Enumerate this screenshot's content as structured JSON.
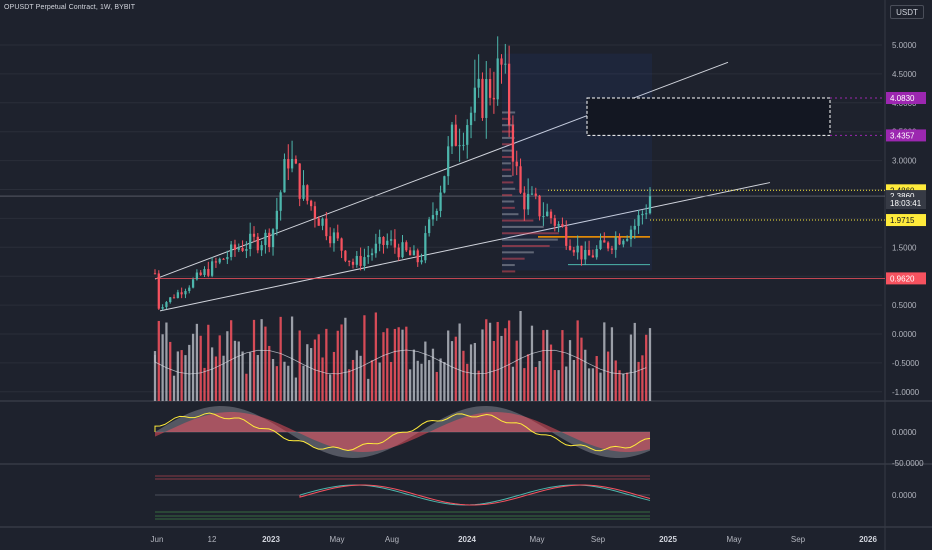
{
  "header": {
    "title": "OPUSDT Perpetual Contract, 1W, BYBIT",
    "currency_label": "USDT"
  },
  "price_axis": {
    "ticks": [
      "5.0000",
      "4.5000",
      "4.0000",
      "3.5000",
      "3.0000",
      "2.5000",
      "2.0000",
      "1.5000",
      "1.0000",
      "0.5000",
      "0.0000",
      "-0.5000",
      "-1.0000"
    ],
    "labels": [
      {
        "text": "4.0830",
        "color": "#9c27b0",
        "value": 4.083
      },
      {
        "text": "3.4357",
        "color": "#9c27b0",
        "value": 3.4357
      },
      {
        "text": "2.4860",
        "color": "#ffeb3b",
        "value": 2.486
      },
      {
        "text": "2.3860",
        "color": "#363a45",
        "value": 2.386
      },
      {
        "text": "18:03:41",
        "color": "#363a45",
        "value": 2.266
      },
      {
        "text": "1.9715",
        "color": "#ffeb3b",
        "value": 1.9715
      },
      {
        "text": "0.9620",
        "color": "#f7525f",
        "value": 0.962
      }
    ]
  },
  "osc_axis": {
    "wt_ticks": [
      "0.0000",
      "-50.0000"
    ],
    "macd_ticks": [
      "0.0000"
    ]
  },
  "time_axis": {
    "labels": [
      {
        "text": "Jun",
        "bold": false
      },
      {
        "text": "12",
        "bold": false
      },
      {
        "text": "2023",
        "bold": true
      },
      {
        "text": "May",
        "bold": false
      },
      {
        "text": "Aug",
        "bold": false
      },
      {
        "text": "2024",
        "bold": true
      },
      {
        "text": "May",
        "bold": false
      },
      {
        "text": "Sep",
        "bold": false
      },
      {
        "text": "2025",
        "bold": true
      },
      {
        "text": "May",
        "bold": false
      },
      {
        "text": "Sep",
        "bold": false
      },
      {
        "text": "2026",
        "bold": true
      }
    ]
  },
  "colors": {
    "background": "#1e222d",
    "up": "#4db6ac",
    "down": "#f7525f",
    "neutral_bar": "#b2b5be",
    "grid": "#2a2e39",
    "trendline": "#d1d4dc"
  },
  "chart_data": {
    "type": "candlestick",
    "symbol": "OPUSDT Perpetual Contract",
    "interval": "1W",
    "exchange": "BYBIT",
    "ylim": [
      0.35,
      5.2
    ],
    "close_price": 2.386,
    "levels": [
      4.083,
      3.4357,
      2.486,
      1.9715,
      0.962
    ],
    "key_closes": [
      {
        "date": "2022-06",
        "value": 1.05
      },
      {
        "date": "2022-06-20",
        "value": 0.45
      },
      {
        "date": "2022-11",
        "value": 1.5
      },
      {
        "date": "2023-01",
        "value": 1.7
      },
      {
        "date": "2023-02",
        "value": 3.1
      },
      {
        "date": "2023-03",
        "value": 2.4
      },
      {
        "date": "2023-06",
        "value": 1.2
      },
      {
        "date": "2023-08",
        "value": 1.6
      },
      {
        "date": "2023-10",
        "value": 1.25
      },
      {
        "date": "2023-12",
        "value": 3.4
      },
      {
        "date": "2024-03",
        "value": 4.6
      },
      {
        "date": "2024-04",
        "value": 2.4
      },
      {
        "date": "2024-06",
        "value": 2.0
      },
      {
        "date": "2024-08",
        "value": 1.3
      },
      {
        "date": "2024-11",
        "value": 1.9
      },
      {
        "date": "2024-12",
        "value": 2.386
      }
    ]
  }
}
